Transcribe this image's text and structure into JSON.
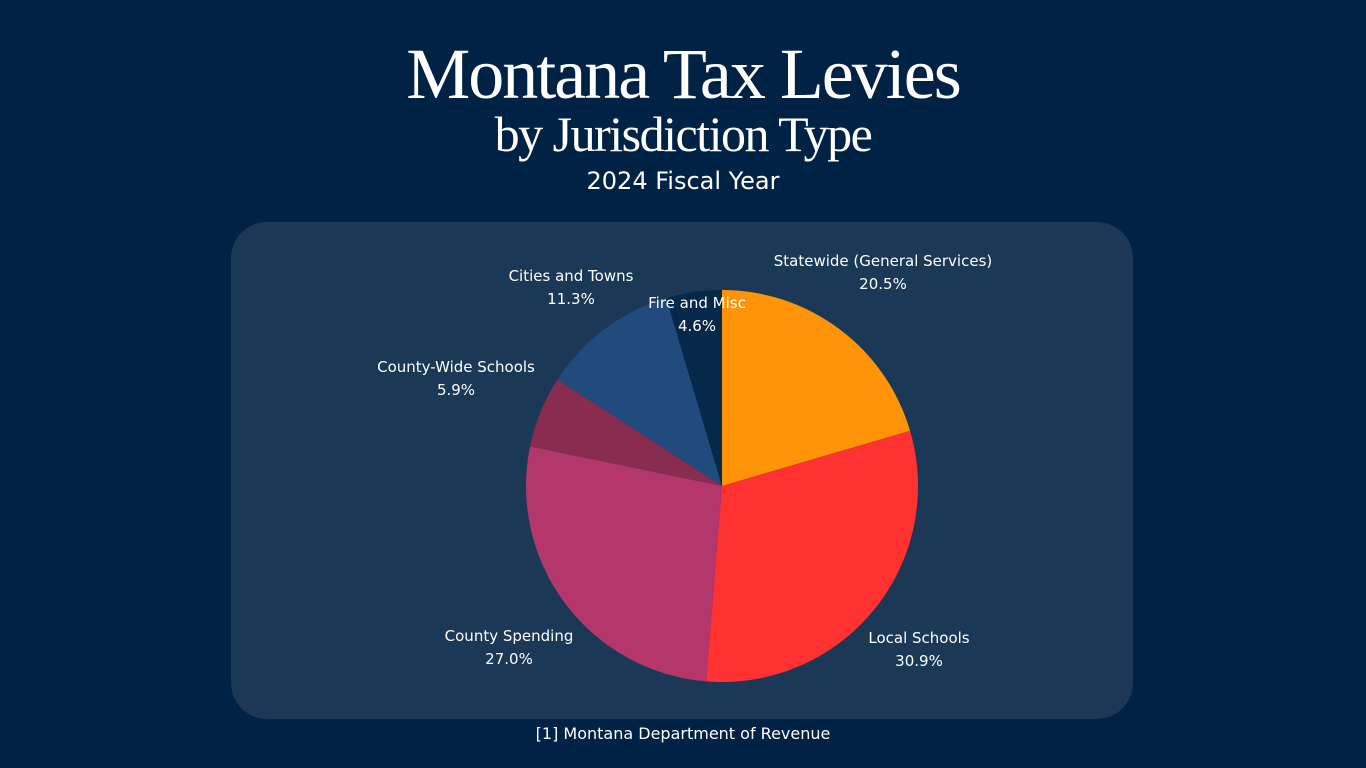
{
  "header": {
    "title": "Montana Tax Levies",
    "subtitle": "by Jurisdiction Type",
    "fiscal_year": "2024 Fiscal Year"
  },
  "footer": {
    "source": "[1] Montana Department of Revenue"
  },
  "chart_data": {
    "type": "pie",
    "title": "Montana Tax Levies by Jurisdiction Type",
    "subtitle": "2024 Fiscal Year",
    "legend": "none",
    "slices": [
      {
        "name": "Statewide (General Services)",
        "value": 20.5,
        "label": "20.5%",
        "color": "#ff9408"
      },
      {
        "name": "Local Schools",
        "value": 30.9,
        "label": "30.9%",
        "color": "#ff3131"
      },
      {
        "name": "County Spending",
        "value": 27.0,
        "label": "27.0%",
        "color": "#b4376b"
      },
      {
        "name": "County-Wide Schools",
        "value": 5.9,
        "label": "5.9%",
        "color": "#882c50"
      },
      {
        "name": "Cities and Towns",
        "value": 11.3,
        "label": "11.3%",
        "color": "#214a7d"
      },
      {
        "name": "Fire and Misc",
        "value": 4.6,
        "label": "4.6%",
        "color": "#062849"
      }
    ]
  }
}
